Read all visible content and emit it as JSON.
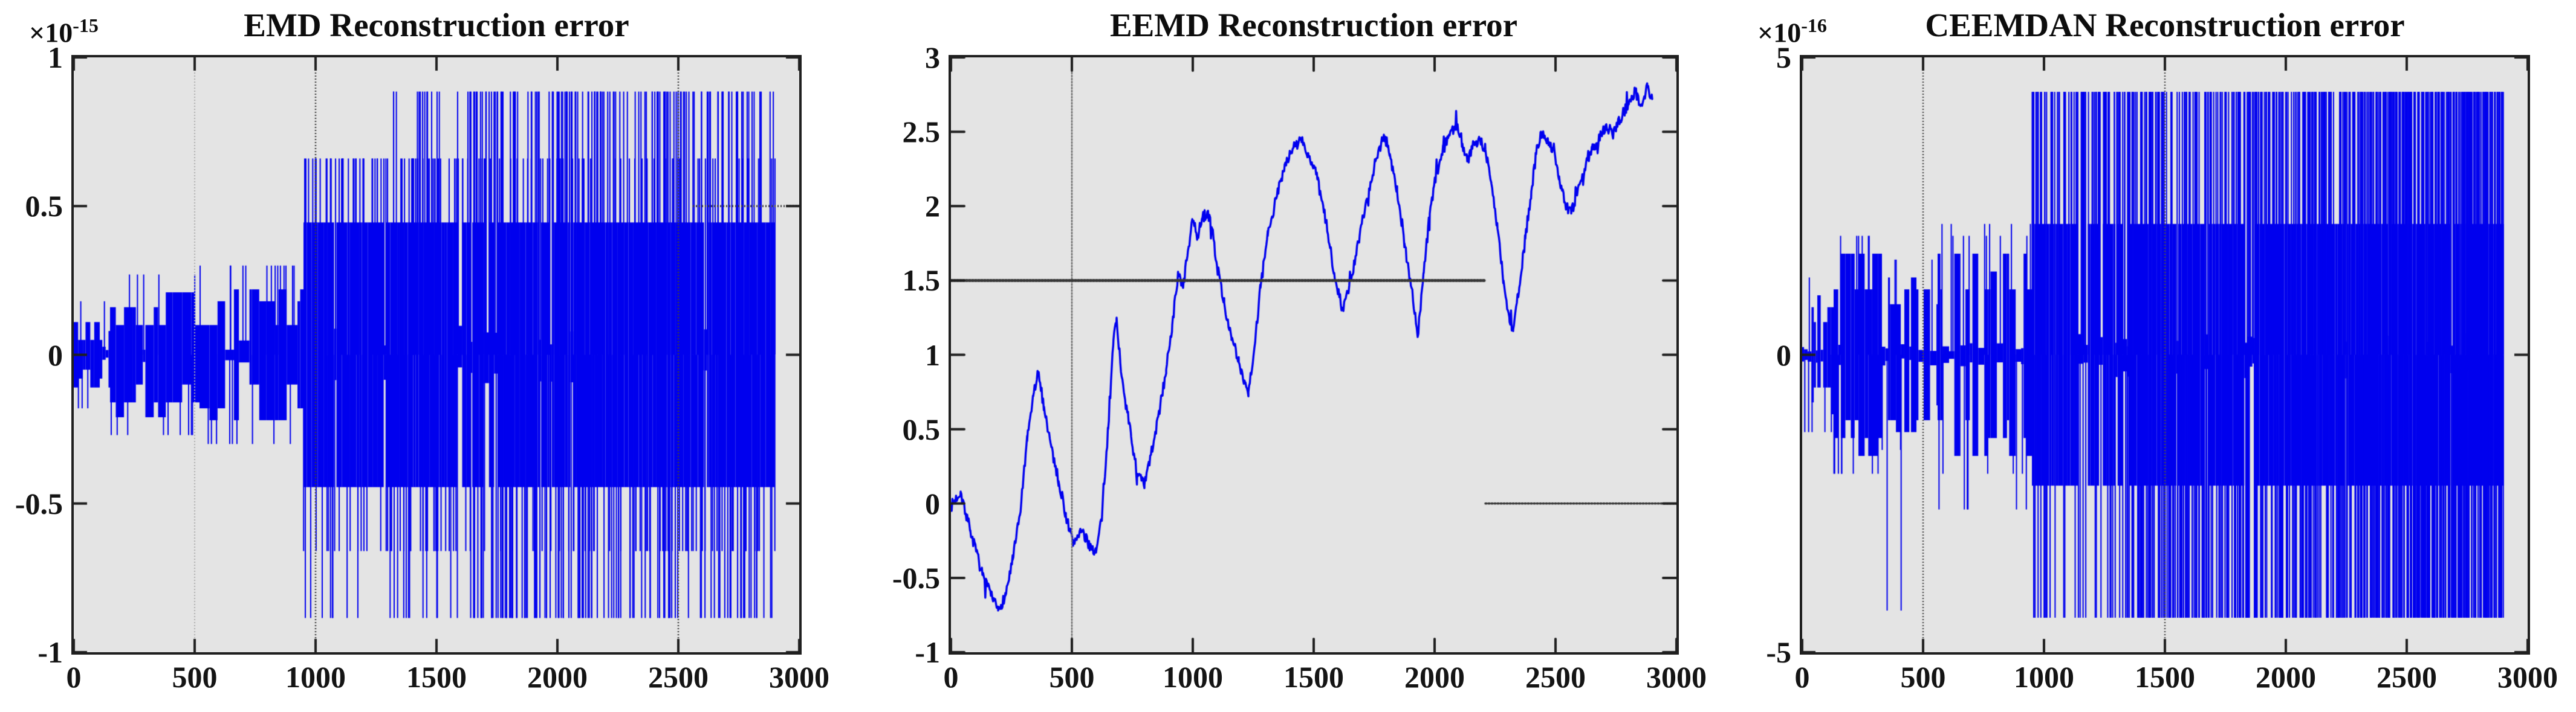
{
  "figure": {
    "background": "#ffffff",
    "plot_background": "#e4e4e4",
    "spine_color": "#1f1f1f",
    "series_color": "#0000ee",
    "label_color": "#141414"
  },
  "chart_data": [
    {
      "type": "noise-segments",
      "title": "EMD Reconstruction error",
      "exponent": {
        "base": "×10",
        "power": "-15"
      },
      "xlabel": "",
      "ylabel": "",
      "xlim": [
        0,
        3000
      ],
      "ylim": [
        -1,
        1
      ],
      "x_ticks": [
        0,
        500,
        1000,
        1500,
        2000,
        2500,
        3000
      ],
      "x_tick_labels": [
        "0",
        "500",
        "1000",
        "1500",
        "2000",
        "2500",
        "3000"
      ],
      "y_ticks": [
        -1,
        -0.5,
        0,
        0.5,
        1
      ],
      "y_tick_labels": [
        "-1",
        "-0.5",
        "0",
        "0.5",
        "1"
      ],
      "grid": false,
      "seed": 42,
      "segments": [
        {
          "x0": 0,
          "x1": 150,
          "levels": [
            0.05,
            0.08,
            0.11
          ],
          "p_gap": 0.4,
          "gap_amp": 0.03,
          "block_w": [
            6,
            26
          ],
          "up": {
            "levels": [
              0.18
            ],
            "p": 0.04
          },
          "down": {
            "levels": [
              -0.18
            ],
            "p": 0.04
          }
        },
        {
          "x0": 150,
          "x1": 520,
          "levels": [
            0.1,
            0.16,
            0.21
          ],
          "p_gap": 0.35,
          "gap_amp": 0.05,
          "block_w": [
            8,
            40
          ],
          "up": {
            "levels": [
              0.27
            ],
            "p": 0.06
          },
          "down": {
            "levels": [
              -0.27
            ],
            "p": 0.06
          }
        },
        {
          "x0": 520,
          "x1": 950,
          "levels": [
            0.1,
            0.18,
            0.22
          ],
          "p_gap": 0.3,
          "gap_amp": 0.05,
          "block_w": [
            8,
            45
          ],
          "up": {
            "levels": [
              0.3
            ],
            "p": 0.07
          },
          "down": {
            "levels": [
              -0.3
            ],
            "p": 0.07
          }
        },
        {
          "x0": 950,
          "x1": 1300,
          "levels": [
            0.445
          ],
          "p_gap": 0.07,
          "gap_amp": 0.1,
          "block_w": [
            6,
            28
          ],
          "up": {
            "levels": [
              0.66
            ],
            "p": 0.3
          },
          "down": {
            "levels": [
              -0.66,
              -0.885
            ],
            "p": 0.22
          }
        },
        {
          "x0": 1300,
          "x1": 1680,
          "levels": [
            0.445
          ],
          "p_gap": 0.06,
          "gap_amp": 0.1,
          "block_w": [
            6,
            28
          ],
          "up": {
            "levels": [
              0.66,
              0.885
            ],
            "p": 0.35
          },
          "down": {
            "levels": [
              -0.885,
              -0.66
            ],
            "p": 0.3
          }
        },
        {
          "x0": 1680,
          "x1": 2900,
          "levels": [
            0.445
          ],
          "p_gap": 0.05,
          "gap_amp": 0.1,
          "block_w": [
            6,
            26
          ],
          "up": {
            "levels": [
              0.885,
              0.66,
              0.885
            ],
            "p": 0.42
          },
          "down": {
            "levels": [
              -0.885,
              -0.66,
              -0.885
            ],
            "p": 0.42
          }
        }
      ],
      "vlines": [
        {
          "x": 500,
          "color": "#ababab",
          "width": 2
        },
        {
          "x": 1000,
          "color": "#3f3f3f",
          "width": 2.5
        },
        {
          "x": 2500,
          "color": "#3f3f3f",
          "width": 2.5
        }
      ],
      "hlines": [
        {
          "y": 0.5,
          "x0": 2560,
          "x1": 3000,
          "color": "#3f3f3f",
          "width": 3.5
        }
      ]
    },
    {
      "type": "line",
      "title": "EEMD Reconstruction error",
      "exponent": null,
      "xlabel": "",
      "ylabel": "",
      "xlim": [
        0,
        3000
      ],
      "ylim": [
        -1,
        3
      ],
      "x_ticks": [
        0,
        500,
        1000,
        1500,
        2000,
        2500,
        3000
      ],
      "x_tick_labels": [
        "0",
        "500",
        "1000",
        "1500",
        "2000",
        "2500",
        "3000"
      ],
      "y_ticks": [
        -1,
        -0.5,
        0,
        0.5,
        1,
        1.5,
        2,
        2.5,
        3
      ],
      "y_tick_labels": [
        "-1",
        "-0.5",
        "0",
        "0.5",
        "1",
        "1.5",
        "2",
        "2.5",
        "3"
      ],
      "grid": false,
      "seed": 7,
      "jitter": 0.038,
      "points": [
        [
          0,
          -0.02
        ],
        [
          40,
          0.08
        ],
        [
          80,
          -0.18
        ],
        [
          130,
          -0.48
        ],
        [
          165,
          -0.62
        ],
        [
          195,
          -0.72
        ],
        [
          225,
          -0.62
        ],
        [
          255,
          -0.38
        ],
        [
          285,
          -0.08
        ],
        [
          315,
          0.42
        ],
        [
          340,
          0.72
        ],
        [
          360,
          0.88
        ],
        [
          385,
          0.65
        ],
        [
          415,
          0.38
        ],
        [
          445,
          0.15
        ],
        [
          475,
          -0.08
        ],
        [
          505,
          -0.27
        ],
        [
          535,
          -0.18
        ],
        [
          565,
          -0.26
        ],
        [
          600,
          -0.33
        ],
        [
          625,
          -0.08
        ],
        [
          650,
          0.5
        ],
        [
          672,
          1.1
        ],
        [
          685,
          1.25
        ],
        [
          700,
          0.95
        ],
        [
          720,
          0.7
        ],
        [
          745,
          0.45
        ],
        [
          770,
          0.2
        ],
        [
          800,
          0.12
        ],
        [
          830,
          0.35
        ],
        [
          860,
          0.6
        ],
        [
          890,
          0.9
        ],
        [
          915,
          1.2
        ],
        [
          940,
          1.55
        ],
        [
          960,
          1.45
        ],
        [
          980,
          1.7
        ],
        [
          1000,
          1.9
        ],
        [
          1020,
          1.8
        ],
        [
          1040,
          1.92
        ],
        [
          1060,
          1.96
        ],
        [
          1080,
          1.85
        ],
        [
          1100,
          1.6
        ],
        [
          1130,
          1.35
        ],
        [
          1160,
          1.1
        ],
        [
          1190,
          0.95
        ],
        [
          1215,
          0.82
        ],
        [
          1230,
          0.75
        ],
        [
          1255,
          1.05
        ],
        [
          1280,
          1.45
        ],
        [
          1310,
          1.8
        ],
        [
          1345,
          2.05
        ],
        [
          1380,
          2.28
        ],
        [
          1420,
          2.4
        ],
        [
          1450,
          2.45
        ],
        [
          1480,
          2.33
        ],
        [
          1515,
          2.18
        ],
        [
          1550,
          1.9
        ],
        [
          1585,
          1.55
        ],
        [
          1620,
          1.3
        ],
        [
          1655,
          1.5
        ],
        [
          1690,
          1.8
        ],
        [
          1720,
          2.05
        ],
        [
          1755,
          2.3
        ],
        [
          1790,
          2.48
        ],
        [
          1815,
          2.35
        ],
        [
          1845,
          2.1
        ],
        [
          1875,
          1.75
        ],
        [
          1905,
          1.45
        ],
        [
          1930,
          1.12
        ],
        [
          1955,
          1.55
        ],
        [
          1980,
          1.95
        ],
        [
          2005,
          2.2
        ],
        [
          2035,
          2.38
        ],
        [
          2065,
          2.5
        ],
        [
          2095,
          2.55
        ],
        [
          2115,
          2.42
        ],
        [
          2135,
          2.3
        ],
        [
          2160,
          2.42
        ],
        [
          2185,
          2.45
        ],
        [
          2210,
          2.38
        ],
        [
          2235,
          2.15
        ],
        [
          2260,
          1.85
        ],
        [
          2285,
          1.5
        ],
        [
          2310,
          1.22
        ],
        [
          2325,
          1.17
        ],
        [
          2350,
          1.45
        ],
        [
          2375,
          1.78
        ],
        [
          2400,
          2.1
        ],
        [
          2420,
          2.35
        ],
        [
          2440,
          2.5
        ],
        [
          2465,
          2.45
        ],
        [
          2490,
          2.38
        ],
        [
          2515,
          2.2
        ],
        [
          2540,
          2.02
        ],
        [
          2565,
          1.95
        ],
        [
          2590,
          2.08
        ],
        [
          2620,
          2.25
        ],
        [
          2650,
          2.38
        ],
        [
          2680,
          2.45
        ],
        [
          2710,
          2.55
        ],
        [
          2735,
          2.48
        ],
        [
          2765,
          2.58
        ],
        [
          2800,
          2.68
        ],
        [
          2830,
          2.78
        ],
        [
          2852,
          2.68
        ],
        [
          2880,
          2.8
        ],
        [
          2900,
          2.72
        ]
      ],
      "vlines": [
        {
          "x": 500,
          "color": "#6f6f6f",
          "width": 2.5
        }
      ],
      "hlines": [
        {
          "y": 1.5,
          "x0": 0,
          "x1": 2210,
          "color": "#383838",
          "width": 5
        },
        {
          "y": 0,
          "x0": 2210,
          "x1": 3000,
          "color": "#383838",
          "width": 3.5
        }
      ]
    },
    {
      "type": "noise-segments",
      "title": "CEEMDAN Reconstruction error",
      "exponent": {
        "base": "×10",
        "power": "-16"
      },
      "xlabel": "",
      "ylabel": "",
      "xlim": [
        0,
        3000
      ],
      "ylim": [
        -5,
        5
      ],
      "x_ticks": [
        0,
        500,
        1000,
        1500,
        2000,
        2500,
        3000
      ],
      "x_tick_labels": [
        "0",
        "500",
        "1000",
        "1500",
        "2000",
        "2500",
        "3000"
      ],
      "y_ticks": [
        -5,
        0,
        5
      ],
      "y_tick_labels": [
        "-5",
        "0",
        "5"
      ],
      "grid": false,
      "seed": 1337,
      "segments": [
        {
          "x0": 0,
          "x1": 130,
          "levels": [
            0.55,
            0.8,
            1.0
          ],
          "p_gap": 0.3,
          "gap_amp": 0.15,
          "block_w": [
            5,
            20
          ],
          "up": {
            "levels": [
              1.3
            ],
            "p": 0.1
          },
          "down": {
            "levels": [
              -1.3
            ],
            "p": 0.1
          }
        },
        {
          "x0": 130,
          "x1": 330,
          "levels": [
            1.1,
            1.4,
            1.7
          ],
          "p_gap": 0.28,
          "gap_amp": 0.2,
          "block_w": [
            6,
            26
          ],
          "up": {
            "levels": [
              2.0
            ],
            "p": 0.12
          },
          "down": {
            "levels": [
              -2.0
            ],
            "p": 0.12
          }
        },
        {
          "x0": 330,
          "x1": 560,
          "levels": [
            0.85,
            1.1,
            1.3
          ],
          "p_gap": 0.32,
          "gap_amp": 0.2,
          "block_w": [
            6,
            28
          ],
          "up": {
            "levels": [
              1.6
            ],
            "p": 0.08
          },
          "down": {
            "levels": [
              -1.6,
              -4.3
            ],
            "p": 0.05
          }
        },
        {
          "x0": 560,
          "x1": 950,
          "levels": [
            1.1,
            1.4,
            1.7
          ],
          "p_gap": 0.25,
          "gap_amp": 0.2,
          "block_w": [
            6,
            28
          ],
          "up": {
            "levels": [
              2.0,
              2.2
            ],
            "p": 0.12
          },
          "down": {
            "levels": [
              -2.0,
              -2.6
            ],
            "p": 0.08
          }
        },
        {
          "x0": 950,
          "x1": 1350,
          "levels": [
            2.2
          ],
          "p_gap": 0.08,
          "gap_amp": 0.4,
          "block_w": [
            5,
            22
          ],
          "up": {
            "levels": [
              4.42
            ],
            "p": 0.5
          },
          "down": {
            "levels": [
              -4.42
            ],
            "p": 0.2
          }
        },
        {
          "x0": 1350,
          "x1": 2350,
          "levels": [
            2.2
          ],
          "p_gap": 0.06,
          "gap_amp": 0.4,
          "block_w": [
            5,
            20
          ],
          "up": {
            "levels": [
              4.42
            ],
            "p": 0.6
          },
          "down": {
            "levels": [
              -4.42
            ],
            "p": 0.6
          }
        },
        {
          "x0": 2350,
          "x1": 2900,
          "levels": [
            2.2
          ],
          "p_gap": 0.05,
          "gap_amp": 0.4,
          "block_w": [
            5,
            18
          ],
          "up": {
            "levels": [
              4.42
            ],
            "p": 0.85
          },
          "down": {
            "levels": [
              -4.42
            ],
            "p": 0.85
          }
        }
      ],
      "vlines": [
        {
          "x": 500,
          "color": "#4a4a4a",
          "width": 2.5
        },
        {
          "x": 1500,
          "color": "#4a4a4a",
          "width": 2.5
        }
      ],
      "hlines": []
    }
  ]
}
